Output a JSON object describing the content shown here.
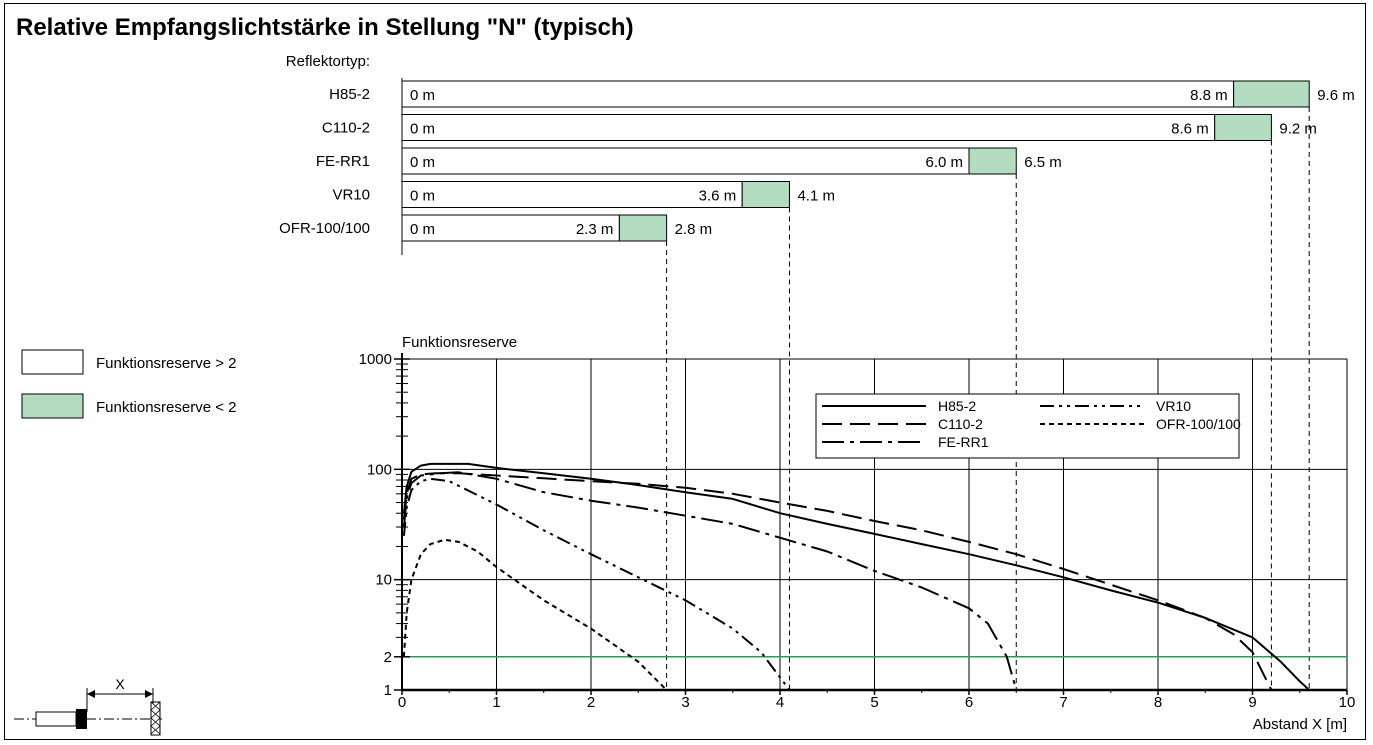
{
  "title": "Relative Empfangslichtstärke in Stellung \"N\" (typisch)",
  "reflector_header": "Reflektortyp:",
  "reflectors": [
    {
      "name": "H85-2",
      "start_label": "0 m",
      "reserve_gt2_end": 8.8,
      "max_range": 9.6,
      "end_label": "8.8 m",
      "max_label": "9.6 m"
    },
    {
      "name": "C110-2",
      "start_label": "0 m",
      "reserve_gt2_end": 8.6,
      "max_range": 9.2,
      "end_label": "8.6 m",
      "max_label": "9.2 m"
    },
    {
      "name": "FE-RR1",
      "start_label": "0 m",
      "reserve_gt2_end": 6.0,
      "max_range": 6.5,
      "end_label": "6.0 m",
      "max_label": "6.5 m"
    },
    {
      "name": "VR10",
      "start_label": "0 m",
      "reserve_gt2_end": 3.6,
      "max_range": 4.1,
      "end_label": "3.6 m",
      "max_label": "4.1 m"
    },
    {
      "name": "OFR-100/100",
      "start_label": "0 m",
      "reserve_gt2_end": 2.3,
      "max_range": 2.8,
      "end_label": "2.3 m",
      "max_label": "2.8 m"
    }
  ],
  "legend_boxes": [
    {
      "label": "Funktionsreserve > 2",
      "color": "#ffffff"
    },
    {
      "label": "Funktionsreserve < 2",
      "color": "#b3dcc0"
    }
  ],
  "colors": {
    "reserve_low": "#b3dcc0",
    "threshold_line": "#2e9a4f",
    "ink": "#000000"
  },
  "diagram_label": "X",
  "chart_data": {
    "type": "line",
    "title": "",
    "ylabel": "Funktionsreserve",
    "xlabel": "Abstand X [m]",
    "xlim": [
      0,
      10
    ],
    "ylim": [
      1,
      1000
    ],
    "yscale": "log",
    "x_ticks": [
      "0",
      "1",
      "2",
      "3",
      "4",
      "5",
      "6",
      "7",
      "8",
      "9",
      "10"
    ],
    "y_ticks": [
      {
        "value": 1000,
        "label": "1000"
      },
      {
        "value": 100,
        "label": "100"
      },
      {
        "value": 10,
        "label": "10"
      },
      {
        "value": 2,
        "label": "2"
      },
      {
        "value": 1,
        "label": "1"
      }
    ],
    "threshold": 2,
    "grid": true,
    "legend_position": "top-right",
    "series": [
      {
        "name": "H85-2",
        "dash": "solid",
        "points": [
          [
            0.02,
            40
          ],
          [
            0.05,
            70
          ],
          [
            0.1,
            95
          ],
          [
            0.2,
            108
          ],
          [
            0.3,
            112
          ],
          [
            0.5,
            112
          ],
          [
            0.7,
            112
          ],
          [
            1,
            103
          ],
          [
            1.5,
            92
          ],
          [
            2,
            82
          ],
          [
            2.5,
            72
          ],
          [
            3,
            62
          ],
          [
            3.5,
            54
          ],
          [
            4,
            40
          ],
          [
            4.5,
            32
          ],
          [
            5,
            26
          ],
          [
            5.5,
            21
          ],
          [
            6,
            17
          ],
          [
            6.5,
            13.5
          ],
          [
            7,
            10.5
          ],
          [
            7.5,
            8
          ],
          [
            8,
            6.2
          ],
          [
            8.5,
            4.5
          ],
          [
            9,
            3
          ],
          [
            9.3,
            1.8
          ],
          [
            9.5,
            1.2
          ],
          [
            9.6,
            1
          ]
        ]
      },
      {
        "name": "C110-2",
        "dash": "long-dash",
        "points": [
          [
            0.02,
            35
          ],
          [
            0.05,
            60
          ],
          [
            0.1,
            82
          ],
          [
            0.2,
            90
          ],
          [
            0.35,
            92
          ],
          [
            0.6,
            92
          ],
          [
            1,
            88
          ],
          [
            1.5,
            83
          ],
          [
            2,
            78
          ],
          [
            2.5,
            74
          ],
          [
            3,
            68
          ],
          [
            3.5,
            60
          ],
          [
            4,
            50
          ],
          [
            4.5,
            42
          ],
          [
            5,
            34
          ],
          [
            5.5,
            28
          ],
          [
            6,
            22
          ],
          [
            6.5,
            17
          ],
          [
            7,
            12.5
          ],
          [
            7.5,
            9
          ],
          [
            8,
            6.5
          ],
          [
            8.5,
            4.5
          ],
          [
            8.8,
            3.2
          ],
          [
            9,
            2.2
          ],
          [
            9.2,
            1
          ]
        ]
      },
      {
        "name": "FE-RR1",
        "dash": "dash-dot",
        "points": [
          [
            0.02,
            30
          ],
          [
            0.05,
            55
          ],
          [
            0.1,
            75
          ],
          [
            0.2,
            88
          ],
          [
            0.4,
            92
          ],
          [
            0.6,
            94
          ],
          [
            1,
            82
          ],
          [
            1.5,
            62
          ],
          [
            2,
            52
          ],
          [
            2.5,
            45
          ],
          [
            3,
            38
          ],
          [
            3.5,
            32
          ],
          [
            4,
            24
          ],
          [
            4.5,
            18
          ],
          [
            5,
            12
          ],
          [
            5.5,
            8.5
          ],
          [
            6,
            5.5
          ],
          [
            6.2,
            4
          ],
          [
            6.4,
            2
          ],
          [
            6.5,
            1
          ]
        ]
      },
      {
        "name": "VR10",
        "dash": "dash-dot-dot",
        "points": [
          [
            0.02,
            25
          ],
          [
            0.05,
            45
          ],
          [
            0.1,
            65
          ],
          [
            0.2,
            78
          ],
          [
            0.3,
            82
          ],
          [
            0.5,
            78
          ],
          [
            1,
            48
          ],
          [
            1.5,
            28
          ],
          [
            2,
            17
          ],
          [
            2.5,
            10.5
          ],
          [
            3,
            6.5
          ],
          [
            3.5,
            3.6
          ],
          [
            3.8,
            2.2
          ],
          [
            4.1,
            1
          ]
        ]
      },
      {
        "name": "OFR-100/100",
        "dash": "short-dash",
        "points": [
          [
            0.02,
            2
          ],
          [
            0.05,
            5
          ],
          [
            0.1,
            10
          ],
          [
            0.2,
            17
          ],
          [
            0.3,
            21
          ],
          [
            0.45,
            23
          ],
          [
            0.6,
            22
          ],
          [
            0.8,
            18
          ],
          [
            1,
            13
          ],
          [
            1.5,
            6.5
          ],
          [
            2,
            3.6
          ],
          [
            2.5,
            1.8
          ],
          [
            2.8,
            1
          ]
        ]
      }
    ]
  }
}
